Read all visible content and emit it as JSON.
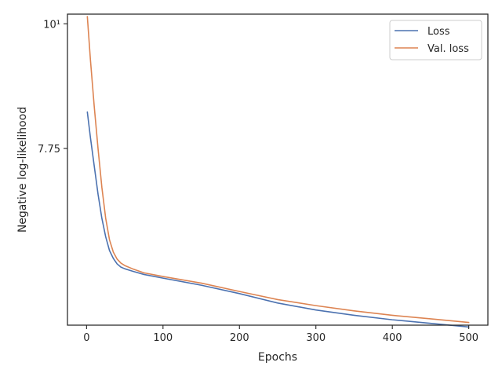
{
  "chart_data": {
    "type": "line",
    "title": "",
    "xlabel": "Epochs",
    "ylabel": "Negative log-likelihood",
    "xlim": [
      -25,
      525
    ],
    "ylim": [
      5.4,
      10.2
    ],
    "yscale": "log",
    "grid": false,
    "legend_position": "top-right",
    "x_ticks": [
      0,
      100,
      200,
      300,
      400,
      500
    ],
    "x_tick_labels": [
      "0",
      "100",
      "200",
      "300",
      "400",
      "500"
    ],
    "y_ticks": [
      7.75,
      10
    ],
    "y_tick_labels": [
      "7.75",
      "10¹"
    ],
    "series": [
      {
        "name": "Loss",
        "color": "#4c72b0",
        "x": [
          1,
          5,
          10,
          15,
          20,
          25,
          30,
          35,
          40,
          45,
          50,
          60,
          75,
          100,
          150,
          200,
          250,
          300,
          350,
          400,
          450,
          500
        ],
        "values": [
          8.35,
          7.93,
          7.48,
          7.06,
          6.72,
          6.47,
          6.29,
          6.19,
          6.12,
          6.08,
          6.06,
          6.03,
          5.99,
          5.945,
          5.86,
          5.76,
          5.65,
          5.57,
          5.51,
          5.46,
          5.42,
          5.38
        ]
      },
      {
        "name": "Val. loss",
        "color": "#dd8452",
        "x": [
          1,
          5,
          10,
          15,
          20,
          25,
          30,
          35,
          40,
          45,
          50,
          60,
          75,
          100,
          150,
          200,
          250,
          300,
          350,
          400,
          450,
          500
        ],
        "values": [
          10.15,
          9.3,
          8.45,
          7.75,
          7.16,
          6.72,
          6.43,
          6.27,
          6.18,
          6.13,
          6.1,
          6.06,
          6.01,
          5.965,
          5.885,
          5.785,
          5.69,
          5.62,
          5.56,
          5.51,
          5.47,
          5.43
        ]
      }
    ]
  }
}
